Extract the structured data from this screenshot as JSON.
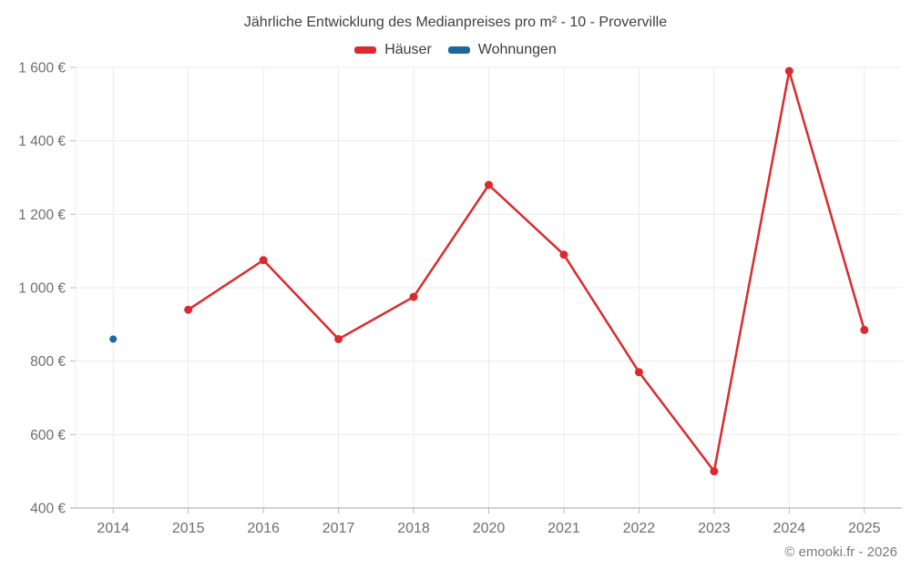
{
  "title": "Jährliche Entwicklung des Medianpreises pro m² - 10 - Proverville",
  "footer": "© emooki.fr - 2026",
  "colors": {
    "grid": "#ebebeb",
    "axis": "#b8b8b8",
    "tick_text": "#6e6e6e",
    "title_text": "#3f3f3f"
  },
  "chart_data": {
    "type": "line",
    "title": "Jährliche Entwicklung des Medianpreises pro m² - 10 - Proverville",
    "categories": [
      "2014",
      "2015",
      "2016",
      "2017",
      "2018",
      "2020",
      "2021",
      "2022",
      "2023",
      "2024",
      "2025"
    ],
    "series": [
      {
        "id": "hauser",
        "name": "Häuser",
        "color": "#d92b2e",
        "marker_radius": 4.5,
        "line_width": 2.5,
        "values": [
          null,
          940,
          1075,
          860,
          975,
          1280,
          1090,
          770,
          500,
          1590,
          885
        ]
      },
      {
        "id": "wohnungen",
        "name": "Wohnungen",
        "color": "#1a699e",
        "marker_radius": 4,
        "line_width": 2.5,
        "values": [
          860,
          null,
          null,
          null,
          null,
          null,
          null,
          null,
          null,
          null,
          null
        ]
      }
    ],
    "y_axis": {
      "min": 400,
      "max": 1600,
      "tick_step": 200,
      "tick_labels": [
        "400 €",
        "600 €",
        "800 €",
        "1 000 €",
        "1 200 €",
        "1 400 €",
        "1 600 €"
      ]
    },
    "x_axis": {
      "label": ""
    },
    "grid": true,
    "legend_position": "top"
  }
}
